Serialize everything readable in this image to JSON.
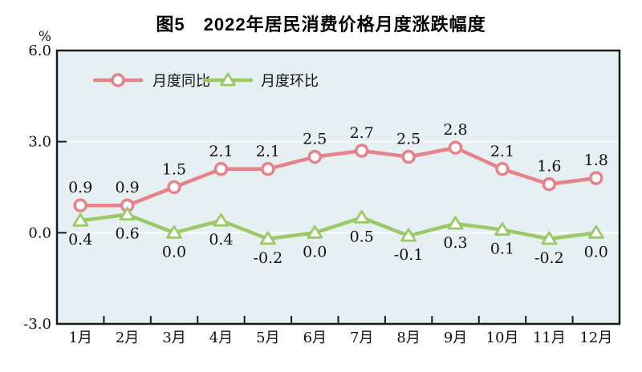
{
  "chart_data": {
    "type": "line",
    "title": "图5　2022年居民消费价格月度涨跌幅度",
    "unit_label": "%",
    "categories": [
      "1月",
      "2月",
      "3月",
      "4月",
      "5月",
      "6月",
      "7月",
      "8月",
      "9月",
      "10月",
      "11月",
      "12月"
    ],
    "series": [
      {
        "name": "月度同比",
        "marker": "circle",
        "color": "#e8828a",
        "label_position": "above",
        "values": [
          0.9,
          0.9,
          1.5,
          2.1,
          2.1,
          2.5,
          2.7,
          2.5,
          2.8,
          2.1,
          1.6,
          1.8
        ]
      },
      {
        "name": "月度环比",
        "marker": "triangle",
        "color": "#9bc968",
        "label_position": "below",
        "values": [
          0.4,
          0.6,
          0.0,
          0.4,
          -0.2,
          0.0,
          0.5,
          -0.1,
          0.3,
          0.1,
          -0.2,
          0.0
        ]
      }
    ],
    "ylim": [
      -3.0,
      6.0
    ],
    "yticks": [
      6.0,
      3.0,
      0.0,
      -3.0
    ],
    "gridlines": [
      3.0,
      0.0
    ],
    "grid": "horizontal-white-lines",
    "legend_position": "top-left-inside",
    "colors": {
      "plot_background": "#e6eff1",
      "gridline": "#fbfdfd",
      "frame": "#1a1a1a",
      "text": "#111111",
      "page_background": "#ffffff"
    }
  }
}
